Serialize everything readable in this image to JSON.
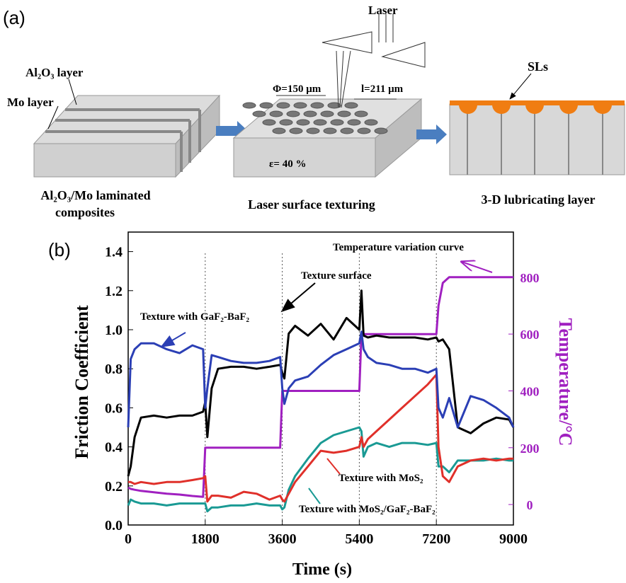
{
  "panel_a": {
    "label": "(a)",
    "laser": "Laser",
    "al2o3_layer": "Al₂O₃ layer",
    "mo_layer": "Mo layer",
    "diameter": "Φ=150 μm",
    "spacing": "l=211 μm",
    "density": "ε= 40 %",
    "sls": "SLs",
    "caption_1": [
      "Al₂O₃/Mo laminated",
      "composites"
    ],
    "caption_2": "Laser surface texturing",
    "caption_3": "3-D lubricating layer"
  },
  "chart_data": {
    "type": "line",
    "panel_label": "(b)",
    "x_label": "Time (s)",
    "y_label": "Friction Coefficient",
    "y2_label": "Temperature/°C",
    "xlim": [
      0,
      9000
    ],
    "xticks": [
      0,
      1800,
      3600,
      5400,
      7200,
      9000
    ],
    "ylim": [
      0,
      1.5
    ],
    "yticks": [
      {
        "value": 0,
        "label": "0.0"
      },
      0.2,
      0.4,
      0.6,
      0.8,
      {
        "value": 1,
        "label": "1.0"
      },
      1.2,
      1.4
    ],
    "y2lim": [
      -72,
      959
    ],
    "y2ticks": [
      0,
      200,
      400,
      600,
      800
    ],
    "x": [
      0,
      60,
      150,
      300,
      600,
      900,
      1200,
      1500,
      1750,
      1800,
      1850,
      1950,
      2100,
      2400,
      2700,
      3000,
      3300,
      3550,
      3600,
      3650,
      3750,
      3900,
      4200,
      4500,
      4800,
      5100,
      5400,
      5450,
      5500,
      5600,
      5800,
      6100,
      6400,
      6700,
      7000,
      7200,
      7250,
      7350,
      7500,
      7700,
      8000,
      8300,
      8600,
      8900,
      9000
    ],
    "series": [
      {
        "name": "Texture surface",
        "color": "#000000",
        "values": [
          0.25,
          0.3,
          0.45,
          0.55,
          0.56,
          0.55,
          0.56,
          0.56,
          0.58,
          0.63,
          0.45,
          0.7,
          0.8,
          0.81,
          0.81,
          0.8,
          0.81,
          0.82,
          0.78,
          0.75,
          0.98,
          1.02,
          0.97,
          1.03,
          0.95,
          1.06,
          1.0,
          1.2,
          0.97,
          0.96,
          0.97,
          0.96,
          0.96,
          0.96,
          0.95,
          0.96,
          0.94,
          0.95,
          0.9,
          0.5,
          0.47,
          0.52,
          0.55,
          0.54,
          0.5
        ]
      },
      {
        "name": "Texture with GaF₂-BaF₂",
        "color": "#2b3fb5",
        "values": [
          0.5,
          0.85,
          0.9,
          0.93,
          0.93,
          0.9,
          0.88,
          0.92,
          0.9,
          0.6,
          0.7,
          0.87,
          0.86,
          0.84,
          0.83,
          0.83,
          0.84,
          0.86,
          0.7,
          0.62,
          0.7,
          0.74,
          0.76,
          0.82,
          0.87,
          0.9,
          0.93,
          0.99,
          0.9,
          0.86,
          0.83,
          0.82,
          0.8,
          0.8,
          0.78,
          0.8,
          0.6,
          0.55,
          0.65,
          0.5,
          0.66,
          0.64,
          0.6,
          0.55,
          0.5
        ]
      },
      {
        "name": "Texture with MoS₂",
        "color": "#e0302a",
        "values": [
          0.22,
          0.22,
          0.21,
          0.22,
          0.21,
          0.22,
          0.22,
          0.23,
          0.24,
          0.25,
          0.12,
          0.15,
          0.15,
          0.14,
          0.17,
          0.16,
          0.13,
          0.15,
          0.13,
          0.12,
          0.16,
          0.22,
          0.3,
          0.38,
          0.37,
          0.38,
          0.4,
          0.45,
          0.4,
          0.44,
          0.48,
          0.54,
          0.6,
          0.66,
          0.72,
          0.77,
          0.4,
          0.25,
          0.22,
          0.3,
          0.33,
          0.34,
          0.33,
          0.34,
          0.34
        ]
      },
      {
        "name": "Texture with MoS₂/GaF₂-BaF₂",
        "color": "#1a9a94",
        "values": [
          0.1,
          0.13,
          0.12,
          0.11,
          0.11,
          0.1,
          0.11,
          0.11,
          0.11,
          0.11,
          0.07,
          0.09,
          0.09,
          0.1,
          0.1,
          0.11,
          0.1,
          0.1,
          0.08,
          0.09,
          0.18,
          0.25,
          0.34,
          0.42,
          0.46,
          0.48,
          0.5,
          0.48,
          0.35,
          0.4,
          0.42,
          0.4,
          0.42,
          0.42,
          0.41,
          0.42,
          0.3,
          0.3,
          0.27,
          0.33,
          0.33,
          0.33,
          0.34,
          0.33,
          0.33
        ]
      },
      {
        "name": "Temperature variation curve",
        "color": "#a020c0",
        "axis": "y2",
        "values": [
          60,
          55,
          52,
          48,
          43,
          38,
          35,
          30,
          27,
          200,
          200,
          200,
          200,
          200,
          200,
          200,
          200,
          200,
          400,
          400,
          400,
          400,
          400,
          400,
          400,
          400,
          400,
          600,
          600,
          600,
          600,
          600,
          600,
          600,
          600,
          600,
          700,
          780,
          800,
          800,
          800,
          800,
          800,
          800,
          800
        ]
      }
    ]
  }
}
